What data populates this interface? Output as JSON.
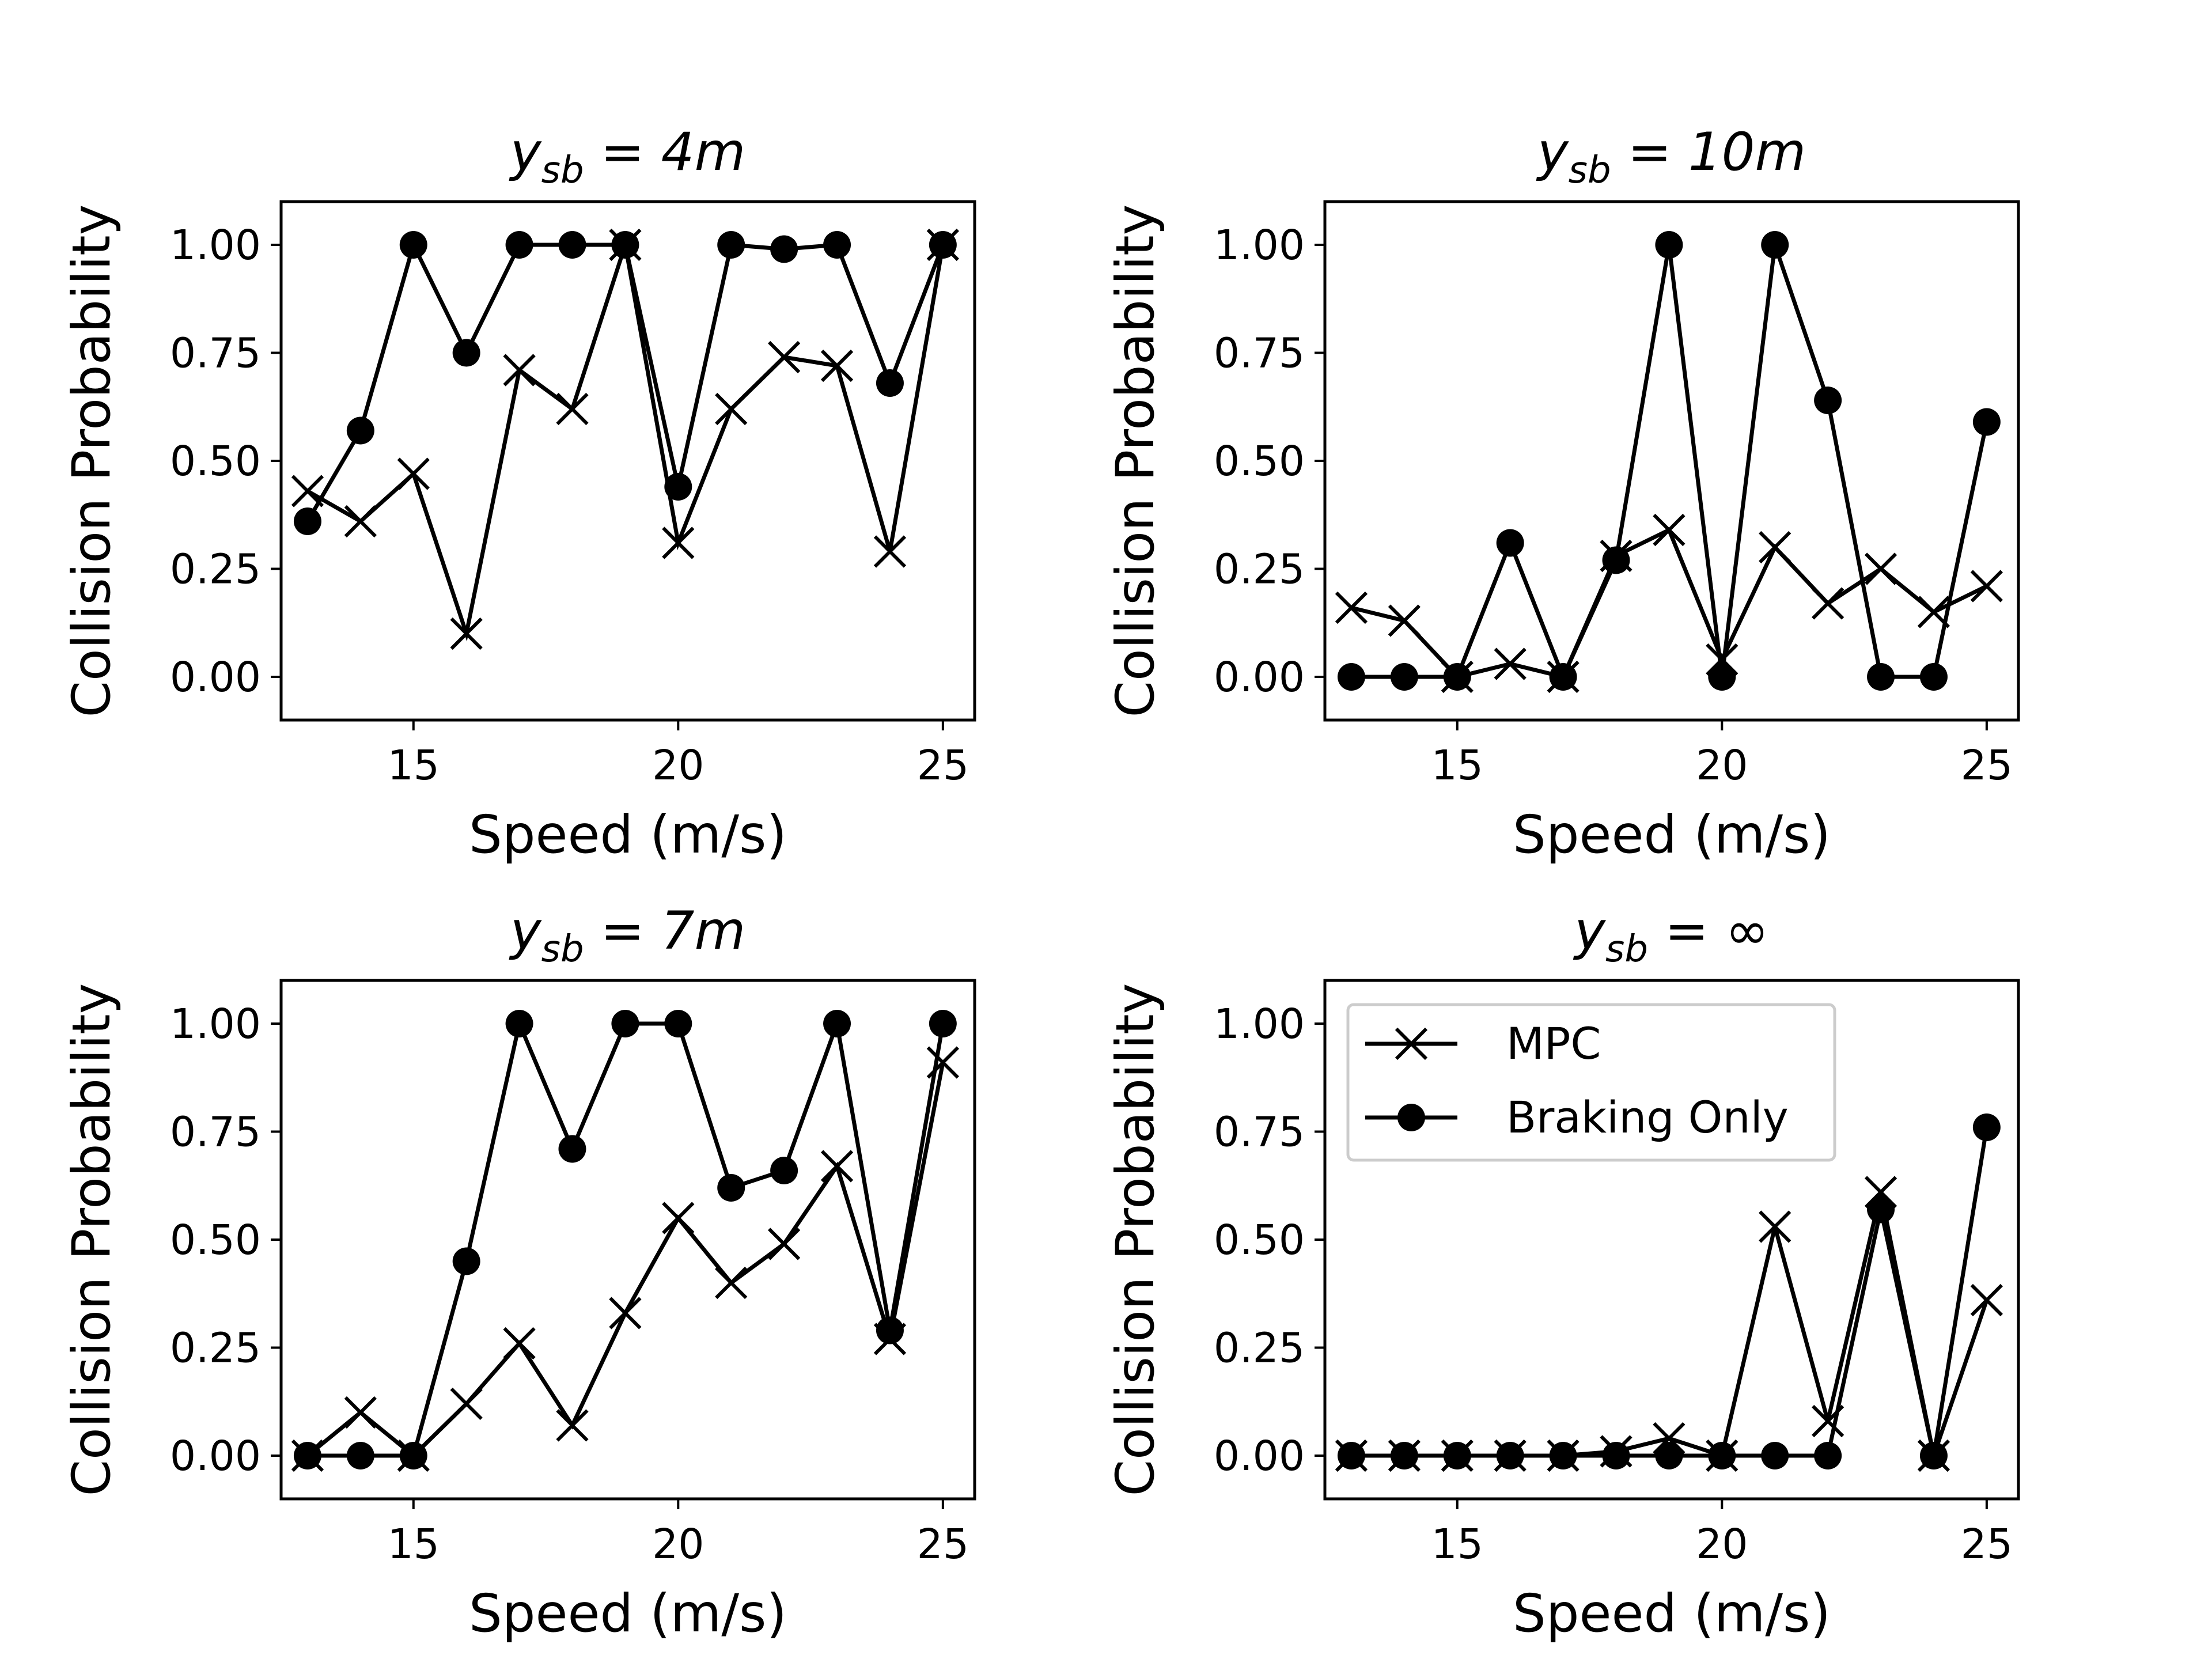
{
  "chart_data": [
    {
      "type": "line",
      "title": {
        "var": "y",
        "sub": "sb",
        "rest": " = 4m"
      },
      "xlabel": "Speed (m/s)",
      "ylabel": "Collision Probability",
      "xlim": [
        12.5,
        25.6
      ],
      "ylim": [
        -0.1,
        1.1
      ],
      "xticks": [
        15,
        20,
        25
      ],
      "yticks": [
        0.0,
        0.25,
        0.5,
        0.75,
        1.0
      ],
      "ytick_labels": [
        "0.00",
        "0.25",
        "0.50",
        "0.75",
        "1.00"
      ],
      "grid": false,
      "x": [
        13,
        14,
        15,
        16,
        17,
        18,
        19,
        20,
        21,
        22,
        23,
        24,
        25
      ],
      "series": [
        {
          "name": "MPC",
          "marker": "x",
          "values": [
            0.43,
            0.36,
            0.47,
            0.1,
            0.71,
            0.62,
            1.0,
            0.31,
            0.62,
            0.74,
            0.72,
            0.29,
            1.0
          ]
        },
        {
          "name": "Braking Only",
          "marker": "o",
          "values": [
            0.36,
            0.57,
            1.0,
            0.75,
            1.0,
            1.0,
            1.0,
            0.44,
            1.0,
            0.99,
            1.0,
            0.68,
            1.0
          ]
        }
      ]
    },
    {
      "type": "line",
      "title": {
        "var": "y",
        "sub": "sb",
        "rest": " = 10m"
      },
      "xlabel": "Speed (m/s)",
      "ylabel": "Collision Probability",
      "xlim": [
        12.5,
        25.6
      ],
      "ylim": [
        -0.1,
        1.1
      ],
      "xticks": [
        15,
        20,
        25
      ],
      "yticks": [
        0.0,
        0.25,
        0.5,
        0.75,
        1.0
      ],
      "ytick_labels": [
        "0.00",
        "0.25",
        "0.50",
        "0.75",
        "1.00"
      ],
      "grid": false,
      "x": [
        13,
        14,
        15,
        16,
        17,
        18,
        19,
        20,
        21,
        22,
        23,
        24,
        25
      ],
      "series": [
        {
          "name": "MPC",
          "marker": "x",
          "values": [
            0.16,
            0.13,
            0.0,
            0.03,
            0.0,
            0.28,
            0.34,
            0.04,
            0.3,
            0.17,
            0.25,
            0.15,
            0.21
          ]
        },
        {
          "name": "Braking Only",
          "marker": "o",
          "values": [
            0.0,
            0.0,
            0.0,
            0.31,
            0.0,
            0.27,
            1.0,
            0.0,
            1.0,
            0.64,
            0.0,
            0.0,
            0.59
          ]
        }
      ]
    },
    {
      "type": "line",
      "title": {
        "var": "y",
        "sub": "sb",
        "rest": " = 7m"
      },
      "xlabel": "Speed (m/s)",
      "ylabel": "Collision Probability",
      "xlim": [
        12.5,
        25.6
      ],
      "ylim": [
        -0.1,
        1.1
      ],
      "xticks": [
        15,
        20,
        25
      ],
      "yticks": [
        0.0,
        0.25,
        0.5,
        0.75,
        1.0
      ],
      "ytick_labels": [
        "0.00",
        "0.25",
        "0.50",
        "0.75",
        "1.00"
      ],
      "grid": false,
      "x": [
        13,
        14,
        15,
        16,
        17,
        18,
        19,
        20,
        21,
        22,
        23,
        24,
        25
      ],
      "series": [
        {
          "name": "MPC",
          "marker": "x",
          "values": [
            0.0,
            0.1,
            0.0,
            0.12,
            0.26,
            0.07,
            0.33,
            0.55,
            0.4,
            0.49,
            0.67,
            0.27,
            0.91
          ]
        },
        {
          "name": "Braking Only",
          "marker": "o",
          "values": [
            0.0,
            0.0,
            0.0,
            0.45,
            1.0,
            0.71,
            1.0,
            1.0,
            0.62,
            0.66,
            1.0,
            0.29,
            1.0
          ]
        }
      ]
    },
    {
      "type": "line",
      "title": {
        "var": "y",
        "sub": "sb",
        "rest": " = ∞"
      },
      "xlabel": "Speed (m/s)",
      "ylabel": "Collision Probability",
      "xlim": [
        12.5,
        25.6
      ],
      "ylim": [
        -0.1,
        1.1
      ],
      "xticks": [
        15,
        20,
        25
      ],
      "yticks": [
        0.0,
        0.25,
        0.5,
        0.75,
        1.0
      ],
      "ytick_labels": [
        "0.00",
        "0.25",
        "0.50",
        "0.75",
        "1.00"
      ],
      "grid": false,
      "legend": {
        "position": "upper left",
        "entries": [
          "MPC",
          "Braking Only"
        ]
      },
      "x": [
        13,
        14,
        15,
        16,
        17,
        18,
        19,
        20,
        21,
        22,
        23,
        24,
        25
      ],
      "series": [
        {
          "name": "MPC",
          "marker": "x",
          "values": [
            0.0,
            0.0,
            0.0,
            0.0,
            0.0,
            0.01,
            0.04,
            0.0,
            0.53,
            0.08,
            0.61,
            0.0,
            0.36
          ]
        },
        {
          "name": "Braking Only",
          "marker": "o",
          "values": [
            0.0,
            0.0,
            0.0,
            0.0,
            0.0,
            0.0,
            0.0,
            0.0,
            0.0,
            0.0,
            0.57,
            0.0,
            0.76
          ]
        }
      ]
    }
  ]
}
